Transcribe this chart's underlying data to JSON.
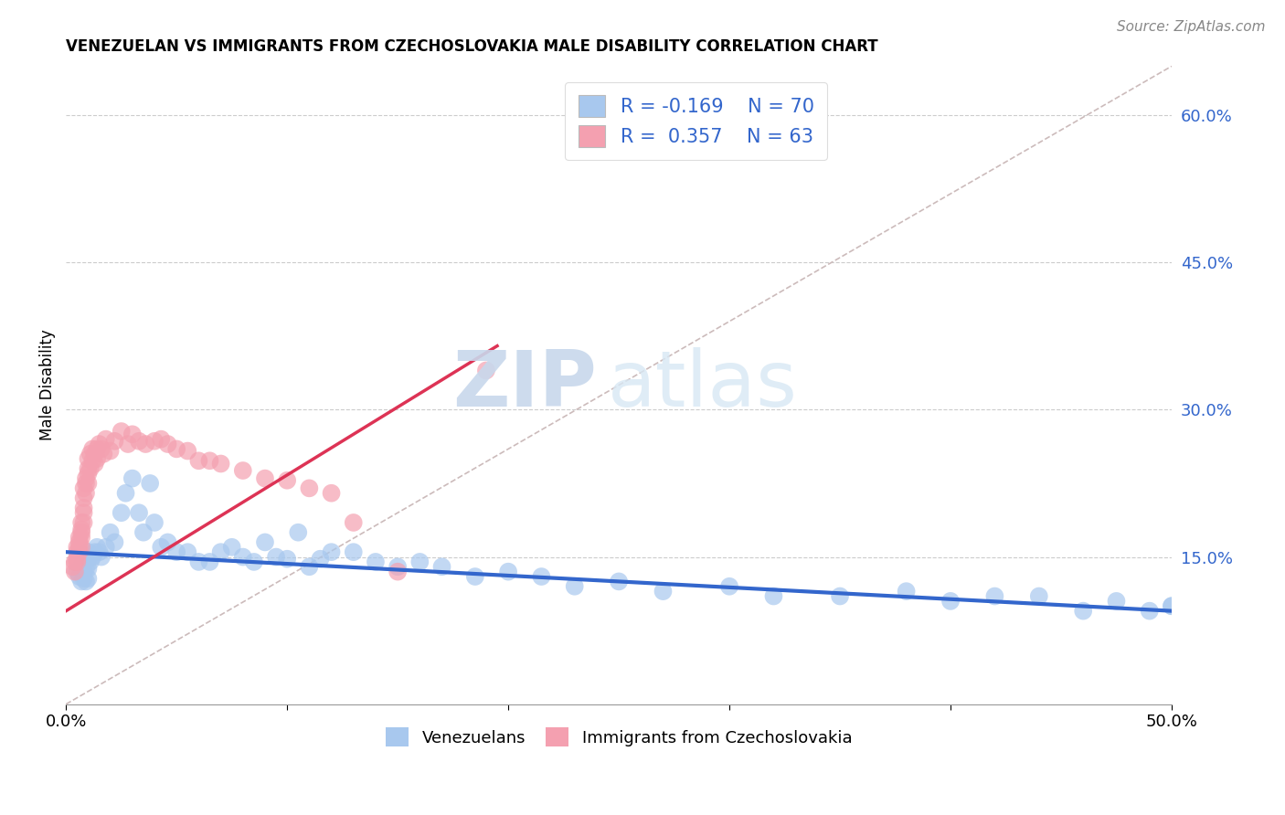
{
  "title": "VENEZUELAN VS IMMIGRANTS FROM CZECHOSLOVAKIA MALE DISABILITY CORRELATION CHART",
  "source": "Source: ZipAtlas.com",
  "ylabel": "Male Disability",
  "xlim": [
    0.0,
    0.5
  ],
  "ylim": [
    0.0,
    0.65
  ],
  "ytick_labels_right": [
    "60.0%",
    "45.0%",
    "30.0%",
    "15.0%"
  ],
  "ytick_vals_right": [
    0.6,
    0.45,
    0.3,
    0.15
  ],
  "R_blue": -0.169,
  "N_blue": 70,
  "R_pink": 0.357,
  "N_pink": 63,
  "blue_color": "#A8C8EE",
  "pink_color": "#F4A0B0",
  "trendline_blue_color": "#3366CC",
  "trendline_pink_color": "#DD3355",
  "trendline_gray_color": "#CCBBBB",
  "watermark_zip": "ZIP",
  "watermark_atlas": "atlas",
  "legend_label_blue": "Venezuelans",
  "legend_label_pink": "Immigrants from Czechoslovakia",
  "blue_trendline_x": [
    0.0,
    0.5
  ],
  "blue_trendline_y": [
    0.155,
    0.095
  ],
  "pink_trendline_x": [
    0.0,
    0.195
  ],
  "pink_trendline_y": [
    0.095,
    0.365
  ],
  "gray_trendline_x": [
    0.0,
    0.5
  ],
  "gray_trendline_y": [
    0.0,
    0.65
  ],
  "blue_x": [
    0.005,
    0.006,
    0.007,
    0.007,
    0.008,
    0.008,
    0.008,
    0.009,
    0.009,
    0.009,
    0.01,
    0.01,
    0.01,
    0.01,
    0.011,
    0.012,
    0.013,
    0.014,
    0.015,
    0.016,
    0.018,
    0.02,
    0.022,
    0.025,
    0.027,
    0.03,
    0.033,
    0.035,
    0.038,
    0.04,
    0.043,
    0.046,
    0.05,
    0.055,
    0.06,
    0.065,
    0.07,
    0.075,
    0.08,
    0.085,
    0.09,
    0.095,
    0.1,
    0.105,
    0.11,
    0.115,
    0.12,
    0.13,
    0.14,
    0.15,
    0.16,
    0.17,
    0.185,
    0.2,
    0.215,
    0.23,
    0.25,
    0.27,
    0.3,
    0.32,
    0.35,
    0.38,
    0.4,
    0.42,
    0.44,
    0.46,
    0.475,
    0.49,
    0.5,
    0.5
  ],
  "blue_y": [
    0.135,
    0.13,
    0.14,
    0.125,
    0.145,
    0.135,
    0.128,
    0.15,
    0.138,
    0.125,
    0.155,
    0.148,
    0.138,
    0.128,
    0.145,
    0.15,
    0.155,
    0.16,
    0.155,
    0.15,
    0.16,
    0.175,
    0.165,
    0.195,
    0.215,
    0.23,
    0.195,
    0.175,
    0.225,
    0.185,
    0.16,
    0.165,
    0.155,
    0.155,
    0.145,
    0.145,
    0.155,
    0.16,
    0.15,
    0.145,
    0.165,
    0.15,
    0.148,
    0.175,
    0.14,
    0.148,
    0.155,
    0.155,
    0.145,
    0.14,
    0.145,
    0.14,
    0.13,
    0.135,
    0.13,
    0.12,
    0.125,
    0.115,
    0.12,
    0.11,
    0.11,
    0.115,
    0.105,
    0.11,
    0.11,
    0.095,
    0.105,
    0.095,
    0.1,
    0.1
  ],
  "pink_x": [
    0.003,
    0.004,
    0.004,
    0.005,
    0.005,
    0.005,
    0.005,
    0.006,
    0.006,
    0.006,
    0.006,
    0.007,
    0.007,
    0.007,
    0.007,
    0.007,
    0.008,
    0.008,
    0.008,
    0.008,
    0.008,
    0.009,
    0.009,
    0.009,
    0.01,
    0.01,
    0.01,
    0.01,
    0.011,
    0.011,
    0.012,
    0.012,
    0.013,
    0.013,
    0.014,
    0.014,
    0.015,
    0.016,
    0.017,
    0.018,
    0.02,
    0.022,
    0.025,
    0.028,
    0.03,
    0.033,
    0.036,
    0.04,
    0.043,
    0.046,
    0.05,
    0.055,
    0.06,
    0.065,
    0.07,
    0.08,
    0.09,
    0.1,
    0.11,
    0.12,
    0.13,
    0.15,
    0.19
  ],
  "pink_y": [
    0.14,
    0.135,
    0.145,
    0.145,
    0.155,
    0.16,
    0.148,
    0.165,
    0.155,
    0.16,
    0.17,
    0.175,
    0.17,
    0.16,
    0.178,
    0.185,
    0.195,
    0.185,
    0.2,
    0.21,
    0.22,
    0.225,
    0.215,
    0.23,
    0.235,
    0.225,
    0.24,
    0.25,
    0.24,
    0.255,
    0.248,
    0.26,
    0.255,
    0.245,
    0.26,
    0.25,
    0.265,
    0.26,
    0.255,
    0.27,
    0.258,
    0.268,
    0.278,
    0.265,
    0.275,
    0.268,
    0.265,
    0.268,
    0.27,
    0.265,
    0.26,
    0.258,
    0.248,
    0.248,
    0.245,
    0.238,
    0.23,
    0.228,
    0.22,
    0.215,
    0.185,
    0.135,
    0.34
  ]
}
